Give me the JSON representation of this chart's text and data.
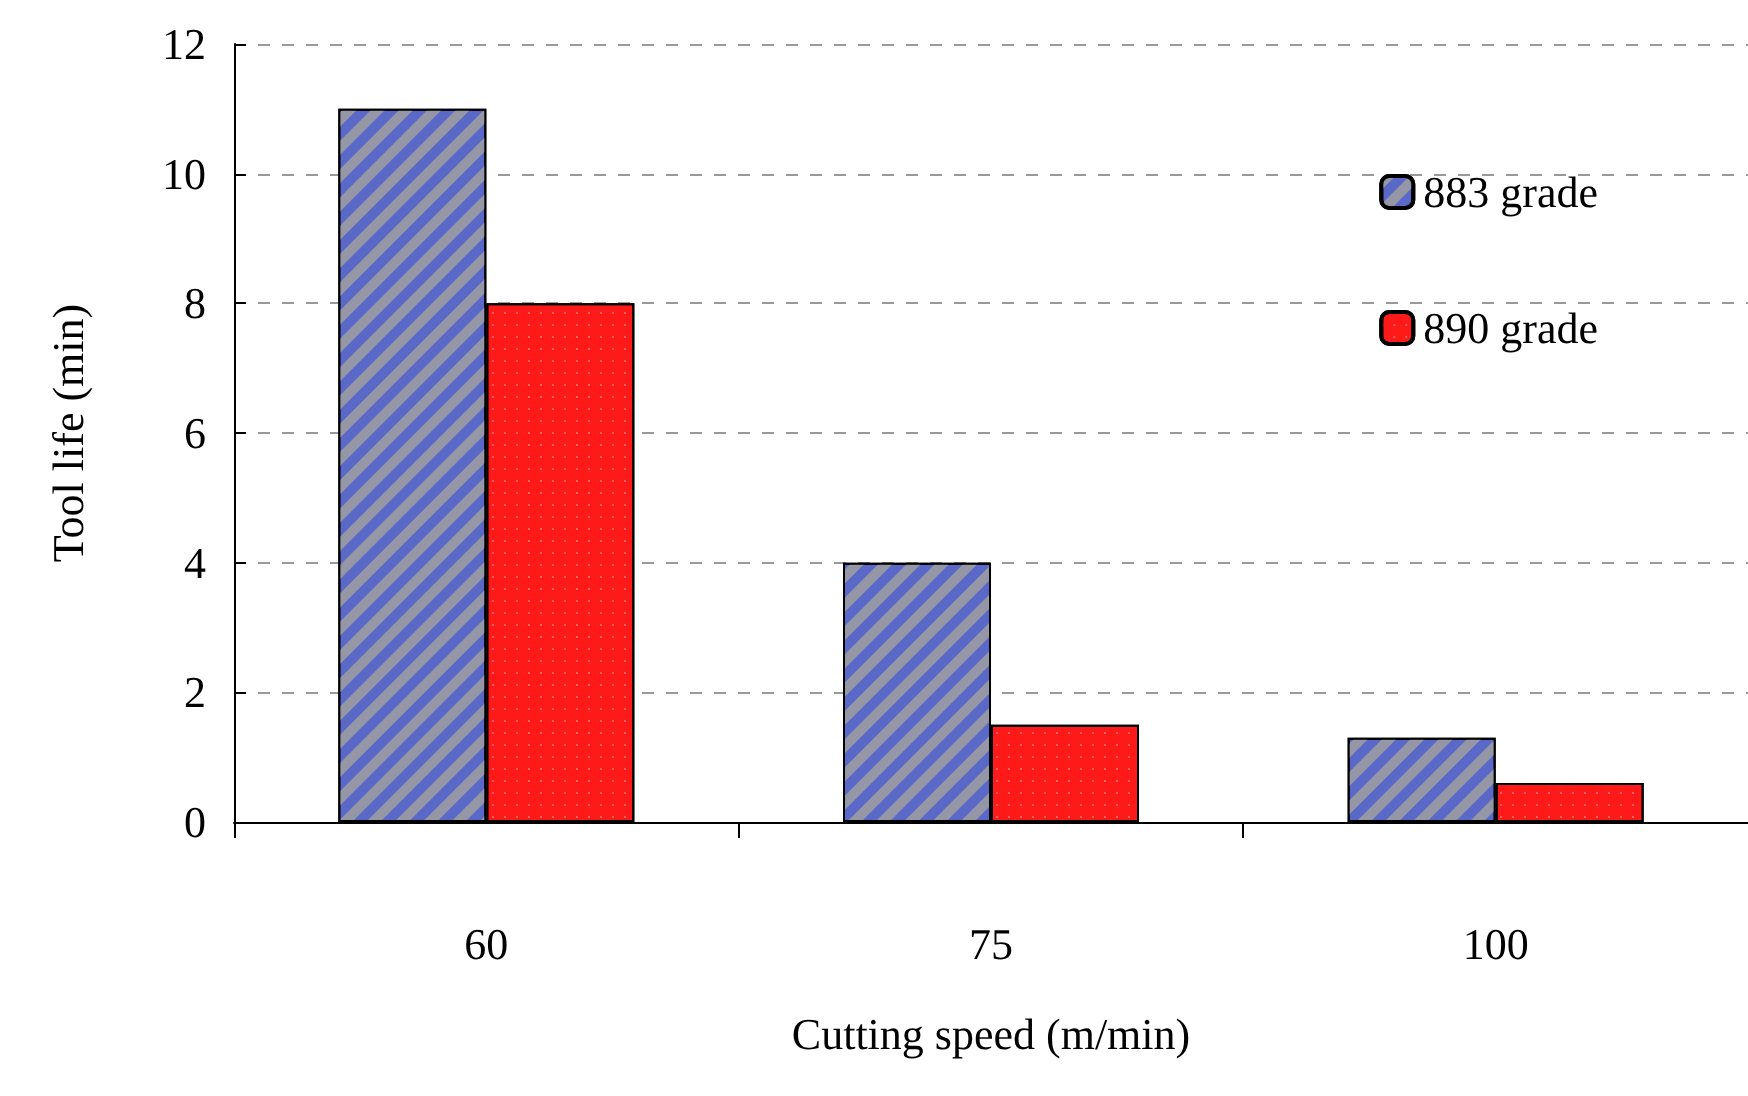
{
  "chart_data": {
    "type": "bar",
    "xlabel": "Cutting speed (m/min)",
    "ylabel": "Tool life (min)",
    "categories": [
      "60",
      "75",
      "100"
    ],
    "series": [
      {
        "name": "883 grade",
        "color": "#5a68c8",
        "values": [
          11,
          4,
          1.3
        ]
      },
      {
        "name": "890 grade",
        "color": "#ff1a1a",
        "values": [
          8,
          1.5,
          0.6
        ]
      }
    ],
    "ylim": [
      0,
      12
    ],
    "yticks": [
      0,
      2,
      4,
      6,
      8,
      10,
      12
    ],
    "grid": "y",
    "legend": "top right"
  }
}
